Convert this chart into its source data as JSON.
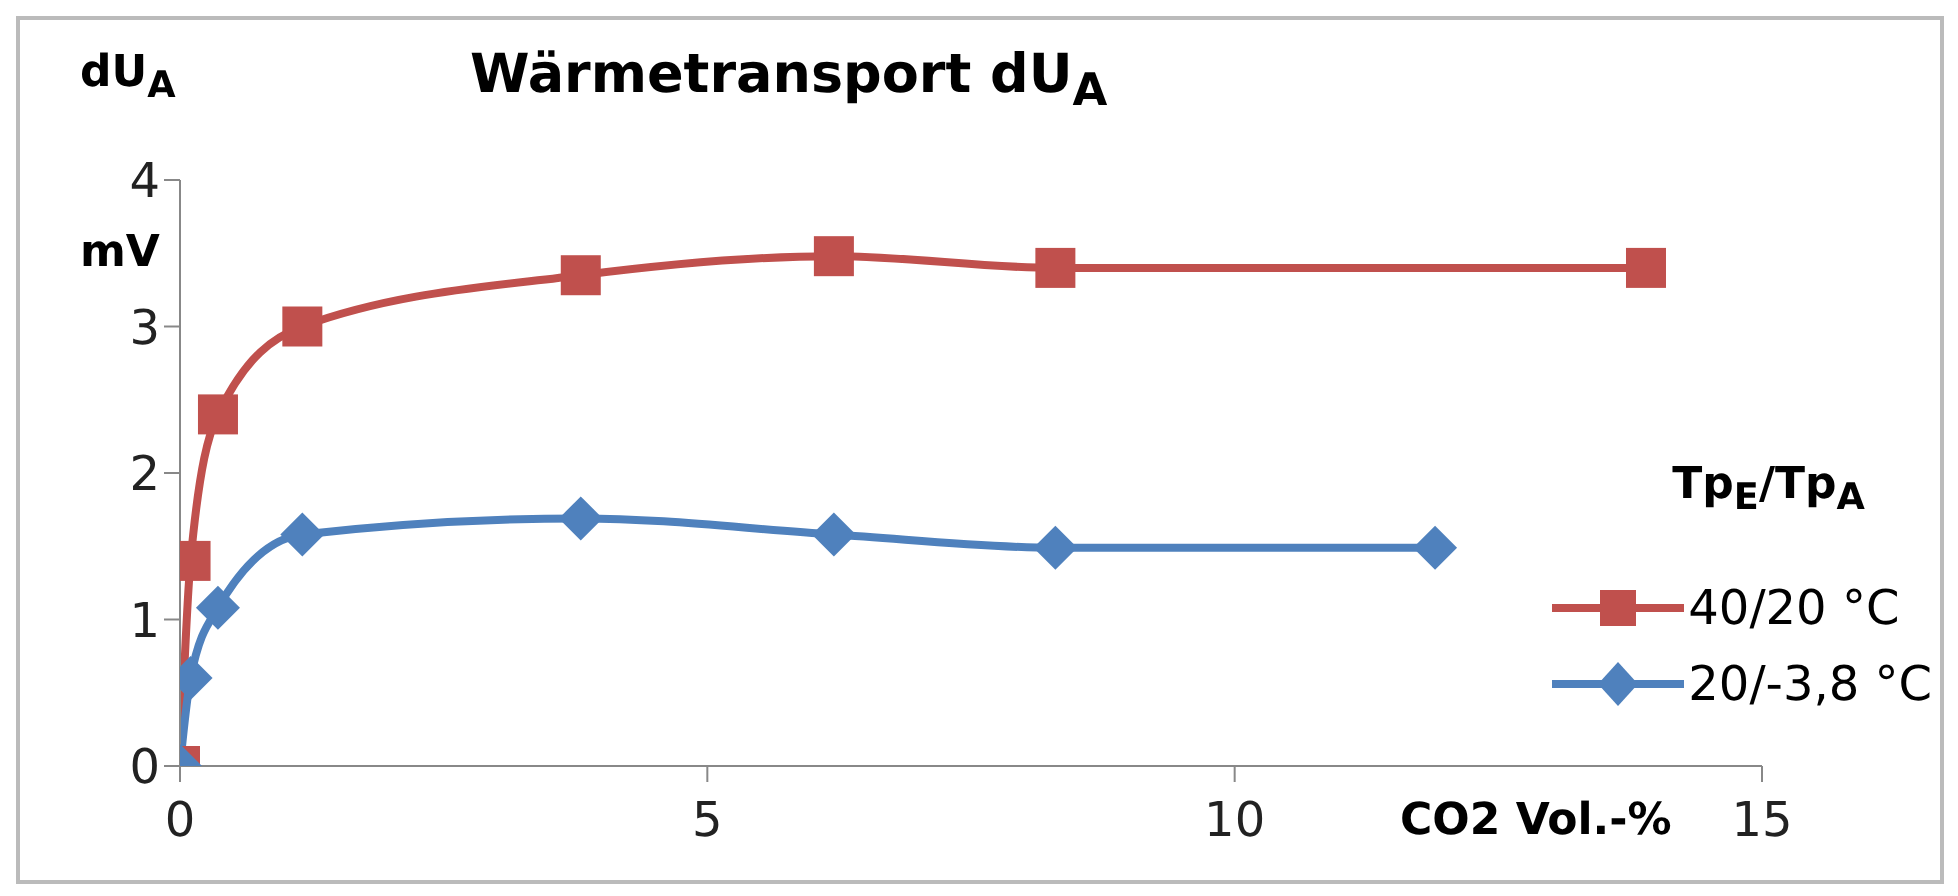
{
  "chart_data": {
    "type": "line",
    "title": "Wärmetransport dU$_{A}$",
    "xlabel": "CO2 Vol.-%",
    "ylabel": "dU$_{A}$ mV",
    "legend_title": "Tp$_{E}$/Tp$_{A}$",
    "legend": "right",
    "grid": false,
    "line_style": "solid",
    "xlim": [
      0,
      15
    ],
    "xticks": [
      0,
      5,
      10,
      15
    ],
    "ylim": [
      0,
      4
    ],
    "yticks": [
      0,
      1,
      2,
      3,
      4
    ],
    "series": [
      {
        "name": "40/20 °C",
        "color": "#c0504d",
        "marker": "square",
        "x": [
          0,
          0.1,
          0.36,
          1.16,
          3.8,
          6.2,
          8.3,
          13.9
        ],
        "values": [
          0,
          1.4,
          2.4,
          3.0,
          3.35,
          3.48,
          3.4,
          3.4
        ]
      },
      {
        "name": "20/-3,8 °C",
        "color": "#4f81bd",
        "marker": "diamond",
        "x": [
          0,
          0.1,
          0.36,
          1.16,
          3.8,
          6.2,
          8.3,
          11.9
        ],
        "values": [
          0,
          0.6,
          1.08,
          1.58,
          1.69,
          1.58,
          1.49,
          1.49
        ]
      }
    ]
  }
}
